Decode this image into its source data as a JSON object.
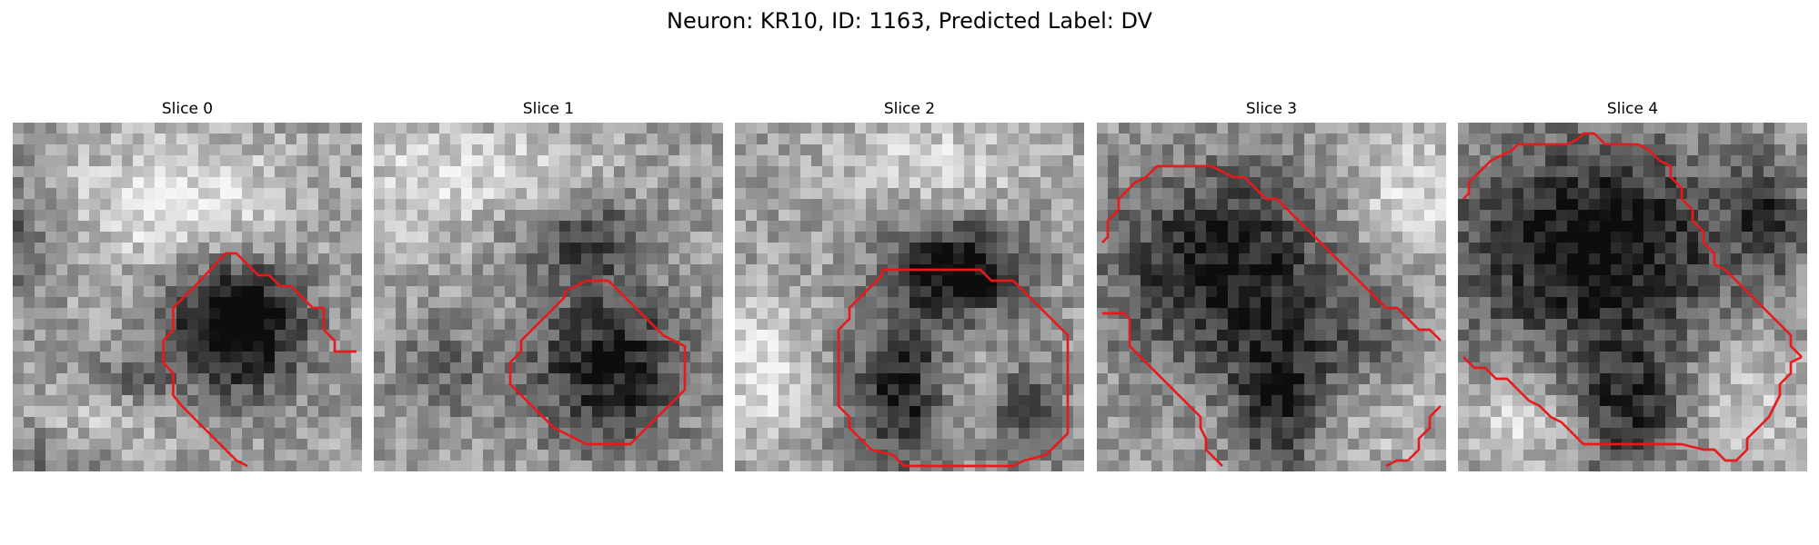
{
  "figure": {
    "title": "Neuron: KR10, ID: 1163, Predicted Label: DV"
  },
  "panels": [
    {
      "title": "Slice 0"
    },
    {
      "title": "Slice 1"
    },
    {
      "title": "Slice 2"
    },
    {
      "title": "Slice 3"
    },
    {
      "title": "Slice 4"
    }
  ],
  "colors": {
    "contour": "#e8191b",
    "background": "#ffffff"
  }
}
